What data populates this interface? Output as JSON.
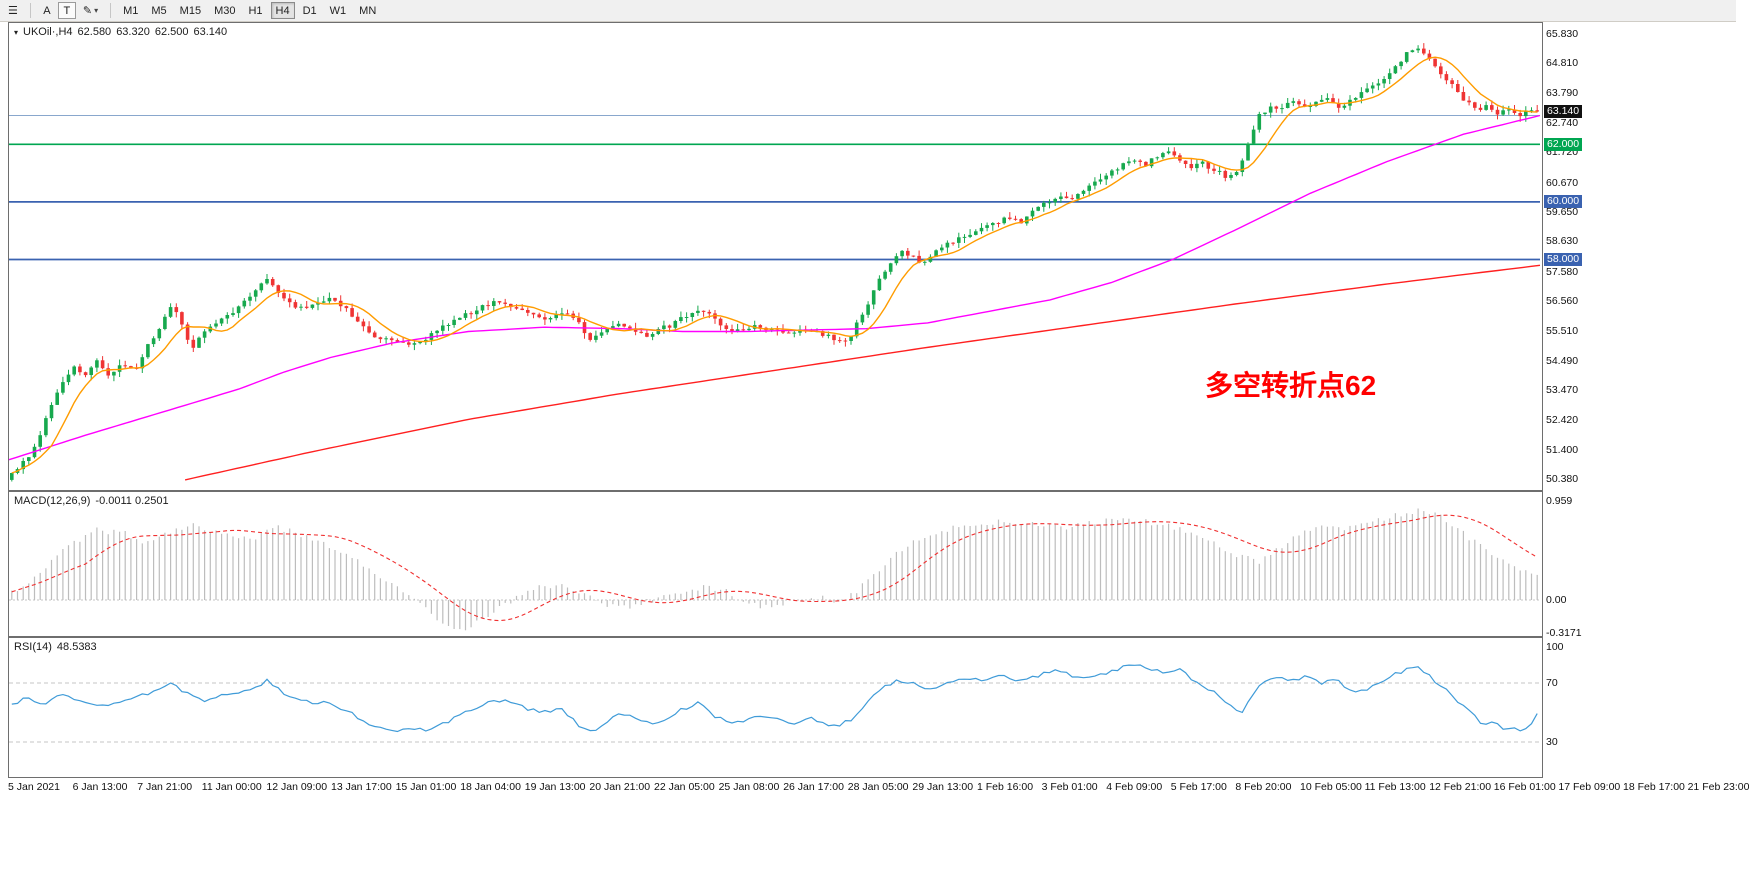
{
  "toolbar": {
    "charts_icon_glyph": "☰",
    "tool_a": "A",
    "tool_t": "T",
    "pen_icon_glyph": "✎",
    "caret_glyph": "▾",
    "timeframes": [
      "M1",
      "M5",
      "M15",
      "M30",
      "H1",
      "H4",
      "D1",
      "W1",
      "MN"
    ],
    "active_timeframe": "H4"
  },
  "chart": {
    "symbol_dropdown_glyph": "▾",
    "symbol": "UKOil·,H4",
    "ohlc": {
      "open": "62.580",
      "high": "63.320",
      "low": "62.500",
      "close": "63.140"
    },
    "annotation": "多空转折点62",
    "price_ticks": [
      "65.830",
      "64.810",
      "63.790",
      "62.740",
      "61.720",
      "60.670",
      "59.650",
      "58.630",
      "57.580",
      "56.560",
      "55.510",
      "54.490",
      "53.470",
      "52.420",
      "51.400",
      "50.380"
    ],
    "price_tags": [
      {
        "text": "63.140",
        "price": 63.14,
        "bg": "#111111"
      },
      {
        "text": "62.000",
        "price": 62.0,
        "bg": "#00a651"
      },
      {
        "text": "60.000",
        "price": 60.0,
        "bg": "#3a62b0"
      },
      {
        "text": "58.000",
        "price": 58.0,
        "bg": "#3a62b0"
      }
    ],
    "hlines": [
      {
        "price": 63.0,
        "color": "#89a7cd",
        "w": 1
      },
      {
        "price": 62.0,
        "color": "#00a651",
        "w": 1.6
      },
      {
        "price": 60.0,
        "color": "#3a62b0",
        "w": 1.8
      },
      {
        "price": 58.0,
        "color": "#3a62b0",
        "w": 1.8
      }
    ],
    "colors": {
      "up": "#17a94e",
      "down": "#ef3434",
      "ma_fast": "#ff9c00",
      "ma_mid": "#ff00ff",
      "ma_slow": "#ff2020",
      "macd_hist": "#bdbdbd",
      "macd_signal": "#f03030",
      "rsi": "#3f9bd8",
      "level": "#c4c4c4",
      "annotation": "#ff0000"
    }
  },
  "macd": {
    "name": "MACD(12,26,9)",
    "values": "-0.0011 0.2501",
    "axis": [
      "0.959",
      "0.00",
      "-0.3171"
    ]
  },
  "rsi": {
    "name": "RSI(14)",
    "value": "48.5383",
    "axis": [
      "100",
      "70",
      "30"
    ]
  },
  "time_labels": [
    "5 Jan 2021",
    "6 Jan 13:00",
    "7 Jan 21:00",
    "11 Jan 00:00",
    "12 Jan 09:00",
    "13 Jan 17:00",
    "15 Jan 01:00",
    "18 Jan 04:00",
    "19 Jan 13:00",
    "20 Jan 21:00",
    "22 Jan 05:00",
    "25 Jan 08:00",
    "26 Jan 17:00",
    "28 Jan 05:00",
    "29 Jan 13:00",
    "1 Feb 16:00",
    "3 Feb 01:00",
    "4 Feb 09:00",
    "5 Feb 17:00",
    "8 Feb 20:00",
    "10 Feb 05:00",
    "11 Feb 13:00",
    "12 Feb 21:00",
    "16 Feb 01:00",
    "17 Feb 09:00",
    "18 Feb 17:00",
    "21 Feb 23:00"
  ],
  "chart_data": {
    "type": "candlestick",
    "symbol": "UKOil",
    "timeframe": "H4",
    "ylim": [
      50.02,
      66.21
    ],
    "ohlc_current": {
      "open": 62.58,
      "high": 63.32,
      "low": 62.5,
      "close": 63.14
    },
    "hline_levels": [
      63.0,
      62.0,
      60.0,
      58.0
    ],
    "price_path": [
      [
        0.0,
        50.6
      ],
      [
        0.008,
        50.95
      ],
      [
        0.016,
        51.6
      ],
      [
        0.024,
        52.7
      ],
      [
        0.032,
        53.6
      ],
      [
        0.04,
        54.3
      ],
      [
        0.048,
        54.0
      ],
      [
        0.056,
        54.55
      ],
      [
        0.064,
        53.95
      ],
      [
        0.072,
        54.4
      ],
      [
        0.08,
        54.1
      ],
      [
        0.088,
        54.9
      ],
      [
        0.096,
        55.5
      ],
      [
        0.104,
        56.35
      ],
      [
        0.11,
        56.05
      ],
      [
        0.117,
        54.85
      ],
      [
        0.124,
        55.35
      ],
      [
        0.133,
        55.75
      ],
      [
        0.143,
        56.1
      ],
      [
        0.152,
        56.55
      ],
      [
        0.16,
        56.95
      ],
      [
        0.168,
        57.35
      ],
      [
        0.175,
        56.9
      ],
      [
        0.185,
        56.35
      ],
      [
        0.196,
        56.4
      ],
      [
        0.208,
        56.6
      ],
      [
        0.219,
        56.3
      ],
      [
        0.23,
        55.65
      ],
      [
        0.24,
        55.3
      ],
      [
        0.251,
        55.2
      ],
      [
        0.261,
        55.0
      ],
      [
        0.27,
        55.2
      ],
      [
        0.281,
        55.6
      ],
      [
        0.292,
        55.9
      ],
      [
        0.304,
        56.25
      ],
      [
        0.314,
        56.5
      ],
      [
        0.326,
        56.4
      ],
      [
        0.338,
        56.2
      ],
      [
        0.347,
        55.9
      ],
      [
        0.356,
        56.1
      ],
      [
        0.364,
        56.2
      ],
      [
        0.371,
        55.8
      ],
      [
        0.379,
        55.25
      ],
      [
        0.389,
        55.5
      ],
      [
        0.398,
        55.8
      ],
      [
        0.407,
        55.6
      ],
      [
        0.415,
        55.3
      ],
      [
        0.424,
        55.6
      ],
      [
        0.434,
        55.75
      ],
      [
        0.443,
        56.1
      ],
      [
        0.451,
        56.3
      ],
      [
        0.46,
        55.95
      ],
      [
        0.469,
        55.6
      ],
      [
        0.478,
        55.5
      ],
      [
        0.487,
        55.7
      ],
      [
        0.497,
        55.6
      ],
      [
        0.507,
        55.45
      ],
      [
        0.517,
        55.6
      ],
      [
        0.527,
        55.5
      ],
      [
        0.536,
        55.3
      ],
      [
        0.544,
        55.1
      ],
      [
        0.551,
        55.45
      ],
      [
        0.559,
        56.25
      ],
      [
        0.568,
        57.2
      ],
      [
        0.576,
        57.9
      ],
      [
        0.583,
        58.3
      ],
      [
        0.59,
        58.1
      ],
      [
        0.598,
        57.85
      ],
      [
        0.606,
        58.25
      ],
      [
        0.616,
        58.6
      ],
      [
        0.626,
        58.85
      ],
      [
        0.636,
        59.05
      ],
      [
        0.646,
        59.3
      ],
      [
        0.655,
        59.5
      ],
      [
        0.662,
        59.3
      ],
      [
        0.67,
        59.7
      ],
      [
        0.68,
        60.0
      ],
      [
        0.688,
        60.2
      ],
      [
        0.695,
        60.1
      ],
      [
        0.703,
        60.4
      ],
      [
        0.71,
        60.7
      ],
      [
        0.718,
        61.0
      ],
      [
        0.726,
        61.2
      ],
      [
        0.736,
        61.5
      ],
      [
        0.743,
        61.3
      ],
      [
        0.75,
        61.6
      ],
      [
        0.758,
        61.8
      ],
      [
        0.766,
        61.5
      ],
      [
        0.773,
        61.2
      ],
      [
        0.78,
        61.35
      ],
      [
        0.788,
        61.1
      ],
      [
        0.796,
        60.9
      ],
      [
        0.804,
        61.05
      ],
      [
        0.812,
        62.2
      ],
      [
        0.818,
        63.0
      ],
      [
        0.825,
        63.35
      ],
      [
        0.833,
        63.25
      ],
      [
        0.84,
        63.5
      ],
      [
        0.848,
        63.3
      ],
      [
        0.856,
        63.5
      ],
      [
        0.864,
        63.6
      ],
      [
        0.871,
        63.3
      ],
      [
        0.878,
        63.5
      ],
      [
        0.886,
        63.8
      ],
      [
        0.894,
        64.1
      ],
      [
        0.901,
        64.4
      ],
      [
        0.908,
        64.8
      ],
      [
        0.915,
        65.15
      ],
      [
        0.921,
        65.45
      ],
      [
        0.927,
        65.1
      ],
      [
        0.933,
        64.75
      ],
      [
        0.94,
        64.3
      ],
      [
        0.947,
        63.85
      ],
      [
        0.953,
        63.5
      ],
      [
        0.96,
        63.15
      ],
      [
        0.967,
        63.35
      ],
      [
        0.974,
        63.05
      ],
      [
        0.981,
        63.25
      ],
      [
        0.988,
        62.95
      ],
      [
        0.994,
        63.2
      ],
      [
        1.0,
        63.14
      ]
    ],
    "ma_mid_path": [
      [
        0.0,
        51.05
      ],
      [
        0.05,
        51.9
      ],
      [
        0.1,
        52.7
      ],
      [
        0.15,
        53.5
      ],
      [
        0.18,
        54.1
      ],
      [
        0.21,
        54.6
      ],
      [
        0.25,
        55.1
      ],
      [
        0.3,
        55.5
      ],
      [
        0.35,
        55.65
      ],
      [
        0.4,
        55.6
      ],
      [
        0.44,
        55.5
      ],
      [
        0.48,
        55.5
      ],
      [
        0.52,
        55.55
      ],
      [
        0.56,
        55.6
      ],
      [
        0.6,
        55.8
      ],
      [
        0.64,
        56.2
      ],
      [
        0.68,
        56.6
      ],
      [
        0.72,
        57.2
      ],
      [
        0.76,
        58.0
      ],
      [
        0.8,
        59.0
      ],
      [
        0.85,
        60.3
      ],
      [
        0.9,
        61.4
      ],
      [
        0.95,
        62.35
      ],
      [
        1.0,
        63.0
      ]
    ],
    "ma_slow_path": [
      [
        0.115,
        50.35
      ],
      [
        0.2,
        51.35
      ],
      [
        0.3,
        52.45
      ],
      [
        0.4,
        53.35
      ],
      [
        0.5,
        54.15
      ],
      [
        0.6,
        54.95
      ],
      [
        0.7,
        55.7
      ],
      [
        0.8,
        56.45
      ],
      [
        0.9,
        57.15
      ],
      [
        1.0,
        57.8
      ]
    ],
    "macd_path": [
      [
        0.0,
        0.08
      ],
      [
        0.015,
        0.22
      ],
      [
        0.035,
        0.5
      ],
      [
        0.055,
        0.68
      ],
      [
        0.075,
        0.64
      ],
      [
        0.09,
        0.55
      ],
      [
        0.105,
        0.68
      ],
      [
        0.118,
        0.74
      ],
      [
        0.135,
        0.66
      ],
      [
        0.155,
        0.58
      ],
      [
        0.175,
        0.7
      ],
      [
        0.195,
        0.6
      ],
      [
        0.215,
        0.48
      ],
      [
        0.235,
        0.3
      ],
      [
        0.255,
        0.1
      ],
      [
        0.268,
        -0.05
      ],
      [
        0.28,
        -0.22
      ],
      [
        0.29,
        -0.3
      ],
      [
        0.3,
        -0.26
      ],
      [
        0.315,
        -0.12
      ],
      [
        0.33,
        0.02
      ],
      [
        0.345,
        0.12
      ],
      [
        0.358,
        0.15
      ],
      [
        0.372,
        0.08
      ],
      [
        0.385,
        -0.02
      ],
      [
        0.398,
        -0.08
      ],
      [
        0.412,
        -0.04
      ],
      [
        0.428,
        0.04
      ],
      [
        0.442,
        0.1
      ],
      [
        0.455,
        0.13
      ],
      [
        0.468,
        0.08
      ],
      [
        0.48,
        0.0
      ],
      [
        0.492,
        -0.06
      ],
      [
        0.505,
        -0.04
      ],
      [
        0.518,
        0.03
      ],
      [
        0.53,
        0.02
      ],
      [
        0.54,
        -0.02
      ],
      [
        0.552,
        0.06
      ],
      [
        0.565,
        0.25
      ],
      [
        0.578,
        0.45
      ],
      [
        0.592,
        0.58
      ],
      [
        0.608,
        0.66
      ],
      [
        0.625,
        0.72
      ],
      [
        0.645,
        0.76
      ],
      [
        0.665,
        0.74
      ],
      [
        0.685,
        0.7
      ],
      [
        0.705,
        0.74
      ],
      [
        0.725,
        0.78
      ],
      [
        0.745,
        0.76
      ],
      [
        0.762,
        0.7
      ],
      [
        0.778,
        0.62
      ],
      [
        0.792,
        0.52
      ],
      [
        0.805,
        0.42
      ],
      [
        0.818,
        0.38
      ],
      [
        0.832,
        0.52
      ],
      [
        0.848,
        0.66
      ],
      [
        0.862,
        0.74
      ],
      [
        0.875,
        0.7
      ],
      [
        0.888,
        0.74
      ],
      [
        0.9,
        0.8
      ],
      [
        0.912,
        0.84
      ],
      [
        0.925,
        0.88
      ],
      [
        0.935,
        0.82
      ],
      [
        0.948,
        0.7
      ],
      [
        0.96,
        0.55
      ],
      [
        0.972,
        0.42
      ],
      [
        0.985,
        0.32
      ],
      [
        1.0,
        0.25
      ]
    ],
    "rsi_levels": [
      70,
      30
    ],
    "rsi_path": [
      [
        0.0,
        55
      ],
      [
        0.01,
        60
      ],
      [
        0.02,
        54
      ],
      [
        0.03,
        62
      ],
      [
        0.045,
        58
      ],
      [
        0.06,
        55
      ],
      [
        0.075,
        59
      ],
      [
        0.09,
        63
      ],
      [
        0.1,
        68
      ],
      [
        0.105,
        72
      ],
      [
        0.112,
        64
      ],
      [
        0.125,
        58
      ],
      [
        0.14,
        62
      ],
      [
        0.155,
        65
      ],
      [
        0.168,
        72
      ],
      [
        0.178,
        63
      ],
      [
        0.19,
        57
      ],
      [
        0.205,
        57
      ],
      [
        0.22,
        51
      ],
      [
        0.235,
        42
      ],
      [
        0.25,
        37
      ],
      [
        0.262,
        40
      ],
      [
        0.272,
        37
      ],
      [
        0.285,
        43
      ],
      [
        0.3,
        52
      ],
      [
        0.315,
        57
      ],
      [
        0.325,
        58
      ],
      [
        0.34,
        52
      ],
      [
        0.352,
        50
      ],
      [
        0.36,
        54
      ],
      [
        0.373,
        39
      ],
      [
        0.382,
        37
      ],
      [
        0.392,
        46
      ],
      [
        0.4,
        50
      ],
      [
        0.412,
        45
      ],
      [
        0.422,
        42
      ],
      [
        0.435,
        50
      ],
      [
        0.45,
        56
      ],
      [
        0.462,
        47
      ],
      [
        0.475,
        43
      ],
      [
        0.49,
        48
      ],
      [
        0.502,
        45
      ],
      [
        0.512,
        42
      ],
      [
        0.525,
        46
      ],
      [
        0.54,
        40
      ],
      [
        0.552,
        46
      ],
      [
        0.562,
        58
      ],
      [
        0.572,
        67
      ],
      [
        0.582,
        72
      ],
      [
        0.592,
        69
      ],
      [
        0.602,
        65
      ],
      [
        0.615,
        71
      ],
      [
        0.625,
        74
      ],
      [
        0.635,
        71
      ],
      [
        0.648,
        75
      ],
      [
        0.66,
        72
      ],
      [
        0.672,
        75
      ],
      [
        0.685,
        78
      ],
      [
        0.695,
        75
      ],
      [
        0.705,
        73
      ],
      [
        0.718,
        77
      ],
      [
        0.73,
        81
      ],
      [
        0.74,
        83
      ],
      [
        0.748,
        79
      ],
      [
        0.756,
        76
      ],
      [
        0.764,
        80
      ],
      [
        0.772,
        74
      ],
      [
        0.782,
        68
      ],
      [
        0.792,
        61
      ],
      [
        0.8,
        54
      ],
      [
        0.806,
        49
      ],
      [
        0.813,
        61
      ],
      [
        0.82,
        71
      ],
      [
        0.828,
        74
      ],
      [
        0.838,
        71
      ],
      [
        0.848,
        74
      ],
      [
        0.858,
        70
      ],
      [
        0.868,
        74
      ],
      [
        0.875,
        67
      ],
      [
        0.885,
        64
      ],
      [
        0.893,
        69
      ],
      [
        0.902,
        74
      ],
      [
        0.912,
        78
      ],
      [
        0.922,
        81
      ],
      [
        0.93,
        74
      ],
      [
        0.94,
        66
      ],
      [
        0.95,
        56
      ],
      [
        0.958,
        48
      ],
      [
        0.965,
        42
      ],
      [
        0.972,
        44
      ],
      [
        0.978,
        38
      ],
      [
        0.985,
        41
      ],
      [
        0.99,
        36
      ],
      [
        0.995,
        40
      ],
      [
        1.0,
        48.5
      ]
    ]
  }
}
